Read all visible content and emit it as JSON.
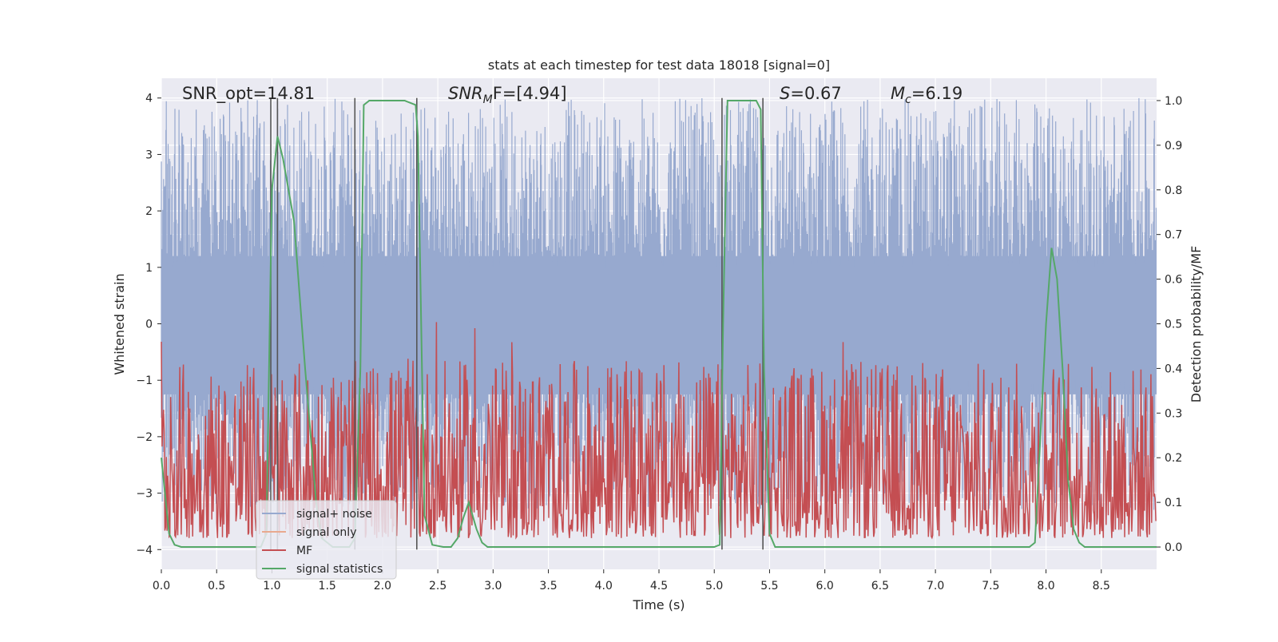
{
  "chart_data": {
    "type": "line",
    "title": "stats at each timestep for test data 18018 [signal=0]",
    "xlabel": "Time (s)",
    "ylabel": "Whitened strain",
    "ylabel_right": "Detection probability/MF",
    "xlim": [
      0,
      9
    ],
    "ylim": [
      -4.35,
      4.35
    ],
    "ylim_right": [
      -0.05,
      1.05
    ],
    "x_ticks": [
      "0.0",
      "0.5",
      "1.0",
      "1.5",
      "2.0",
      "2.5",
      "3.0",
      "3.5",
      "4.0",
      "4.5",
      "5.0",
      "5.5",
      "6.0",
      "6.5",
      "7.0",
      "7.5",
      "8.0",
      "8.5"
    ],
    "y_ticks": [
      "4",
      "3",
      "2",
      "1",
      "0",
      "−1",
      "−2",
      "−3",
      "−4"
    ],
    "y_ticks_right": [
      "1.0",
      "0.9",
      "0.8",
      "0.7",
      "0.6",
      "0.5",
      "0.4",
      "0.3",
      "0.2",
      "0.1",
      "0.0"
    ],
    "grid": true,
    "legend_position": "lower-left",
    "annotations": {
      "snr_opt": "SNR_opt=14.81",
      "snr_mf_main": "SNR",
      "snr_mf_sub": "M",
      "snr_mf_rest": "F=[4.94]",
      "s_main": "S",
      "s_rest": "=0.67",
      "mc_main": "M",
      "mc_sub": "c",
      "mc_rest": "=6.19"
    },
    "series": [
      {
        "name": "signal+ noise",
        "color": "#97a9cf",
        "style": "noise",
        "envelope": [
          -3.3,
          4.0
        ]
      },
      {
        "name": "signal only",
        "color": "#e9a98f",
        "style": "flat"
      },
      {
        "name": "MF",
        "color": "#c44e52",
        "style": "noise",
        "range": [
          0.02,
          0.55
        ],
        "axis": "right"
      },
      {
        "name": "signal statistics",
        "color": "#55a868",
        "axis": "right",
        "x": [
          0.0,
          0.07,
          0.12,
          0.18,
          0.3,
          0.6,
          0.9,
          0.95,
          1.0,
          1.05,
          1.1,
          1.2,
          1.3,
          1.4,
          1.45,
          1.55,
          1.7,
          1.75,
          1.8,
          1.83,
          1.88,
          1.95,
          2.2,
          2.3,
          2.32,
          2.38,
          2.45,
          2.55,
          2.62,
          2.68,
          2.73,
          2.78,
          2.85,
          2.9,
          2.95,
          3.2,
          4.5,
          5.0,
          5.05,
          5.08,
          5.12,
          5.3,
          5.38,
          5.42,
          5.45,
          5.5,
          5.55,
          5.6,
          6.0,
          7.0,
          7.8,
          7.85,
          7.9,
          7.95,
          8.0,
          8.05,
          8.1,
          8.15,
          8.2,
          8.25,
          8.3,
          8.35,
          8.4,
          8.5,
          9.0
        ],
        "y": [
          0.2,
          0.03,
          0.005,
          0.0,
          0.0,
          0.0,
          0.0,
          0.03,
          0.8,
          0.92,
          0.87,
          0.73,
          0.4,
          0.1,
          0.02,
          0.0,
          0.0,
          0.02,
          0.4,
          0.99,
          1.0,
          1.0,
          1.0,
          0.99,
          0.92,
          0.07,
          0.005,
          0.0,
          0.0,
          0.02,
          0.065,
          0.1,
          0.04,
          0.01,
          0.0,
          0.0,
          0.0,
          0.0,
          0.005,
          0.5,
          1.0,
          1.0,
          1.0,
          0.98,
          0.4,
          0.03,
          0.0,
          0.0,
          0.0,
          0.0,
          0.0,
          0.0,
          0.01,
          0.25,
          0.5,
          0.67,
          0.6,
          0.4,
          0.15,
          0.04,
          0.01,
          0.0,
          0.0,
          0.0,
          0.0
        ]
      }
    ],
    "vertical_lines": [
      0.99,
      1.05,
      1.75,
      2.31,
      5.07,
      5.44
    ]
  }
}
